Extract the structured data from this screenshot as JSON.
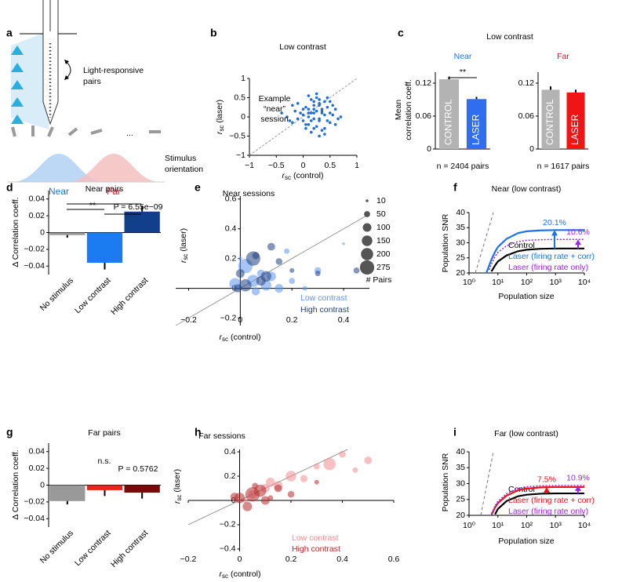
{
  "diagram": {
    "panel": "a",
    "texts": [
      "Light-responsive",
      "pairs",
      "...",
      "Near",
      "Far",
      "Stimulus",
      "orientation"
    ]
  },
  "chart_data": [
    {
      "type": "scatter",
      "panel": "b",
      "title": "Low contrast",
      "xlabel": {
        "text": "r",
        "sub": "sc",
        "rest": " (control)"
      },
      "ylabel": {
        "text": "r",
        "sub": "sc",
        "rest": " (laser)"
      },
      "annotation": [
        "Example",
        "“near”",
        "session"
      ],
      "xlim": [
        -1,
        1
      ],
      "ylim": [
        -1,
        1
      ],
      "xticks": [
        {
          "value": -1,
          "label": "−1"
        },
        {
          "value": -0.5,
          "label": "−0.5"
        },
        0,
        0.5,
        1
      ],
      "yticks": [
        {
          "value": -1,
          "label": "−1"
        },
        {
          "value": -0.5,
          "label": "−0.5"
        },
        0,
        0.5,
        1
      ],
      "series": [
        {
          "color": "#1f6fd6",
          "x": [
            0.1,
            0.3,
            -0.2,
            0.5,
            0.2,
            0.0,
            0.4,
            0.6,
            -0.1,
            0.25,
            0.35,
            0.15,
            -0.3,
            0.45,
            0.05,
            0.55,
            0.2,
            0.1,
            0.3,
            -0.05,
            0.4,
            0.7,
            0.25,
            0.0,
            0.15,
            0.5,
            0.35,
            -0.15,
            0.3,
            0.2,
            0.1,
            0.45,
            0.6,
            -0.25,
            0.05,
            0.25,
            0.4,
            0.15,
            0.3,
            0.2,
            -0.4,
            0.35,
            0.5,
            0.1,
            0.0,
            0.25,
            0.65,
            0.2,
            0.4,
            -0.1,
            0.3,
            0.15,
            0.55,
            0.05,
            0.2,
            0.35,
            -0.2,
            0.45,
            0.1,
            0.3
          ],
          "values": [
            0.2,
            -0.1,
            0.3,
            0.1,
            -0.3,
            0.05,
            0.4,
            -0.2,
            -0.05,
            0.5,
            0.15,
            -0.4,
            0.0,
            -0.1,
            0.25,
            0.3,
            0.1,
            -0.2,
            0.35,
            0.1,
            -0.3,
            0.0,
            0.6,
            -0.1,
            0.45,
            -0.15,
            0.2,
            0.15,
            -0.5,
            0.3,
            0.0,
            0.25,
            0.2,
            -0.1,
            -0.3,
            -0.25,
            0.05,
            0.1,
            0.45,
            -0.05,
            0.1,
            -0.35,
            0.4,
            0.55,
            0.2,
            0.15,
            -0.05,
            0.2,
            -0.45,
            0.35,
            0.3,
            -0.1,
            0.05,
            -0.2,
            0.4,
            0.1,
            -0.15,
            0.5,
            0.1,
            -0.05
          ]
        }
      ]
    },
    {
      "type": "bar",
      "panel": "c",
      "suptitle": "Low contrast",
      "title": "Near",
      "title_color": "#1f73e0",
      "ylabel": [
        "Mean",
        "correlation coeff."
      ],
      "categories": [
        "CONTROL",
        "LASER"
      ],
      "values": [
        0.127,
        0.091
      ],
      "errors": [
        0.005,
        0.004
      ],
      "colors": [
        "#b3b3b3",
        "#2f6fef"
      ],
      "category_labels": "inside",
      "ylim": [
        0,
        0.14
      ],
      "yticks": [
        0,
        0.06,
        0.12
      ],
      "annotations": [
        "**"
      ],
      "note": "n = 2404 pairs"
    },
    {
      "type": "bar",
      "title": "Far",
      "title_color": "#e8141c",
      "categories": [
        "CONTROL",
        "LASER"
      ],
      "values": [
        0.108,
        0.103
      ],
      "errors": [
        0.006,
        0.005
      ],
      "colors": [
        "#b3b3b3",
        "#f01414"
      ],
      "category_labels": "inside",
      "ylim": [
        0,
        0.14
      ],
      "yticks": [
        0,
        0.06,
        0.12
      ],
      "note": "n = 1617 pairs"
    },
    {
      "type": "bar",
      "panel": "d",
      "title": "Near pairs",
      "ylabel": "Δ Correlation coeff.",
      "categories": [
        "No stimulus",
        "Low contrast",
        "High contrast"
      ],
      "values": [
        -0.003,
        -0.036,
        0.025
      ],
      "errors": [
        0.003,
        0.008,
        0.007
      ],
      "colors": [
        "#999999",
        "#1a7cf0",
        "#123f8c"
      ],
      "category_labels": "rotated",
      "ylim": [
        -0.05,
        0.05
      ],
      "yticks": [
        {
          "value": -0.04,
          "label": "−0.04"
        },
        {
          "value": -0.02,
          "label": "−0.02"
        },
        0,
        0.02,
        0.04
      ],
      "annotations": [
        "**",
        "P = 6.55e−09"
      ]
    },
    {
      "type": "scatter",
      "panel": "e",
      "title": "Near sessions",
      "axes_at_zero": true,
      "xlabel": {
        "text": "r",
        "sub": "sc",
        "rest": " (control)"
      },
      "ylabel": {
        "text": "r",
        "sub": "sc",
        "rest": " (laser)"
      },
      "xlim": [
        -0.25,
        0.5
      ],
      "ylim": [
        -0.25,
        0.62
      ],
      "xticks": [
        {
          "value": -0.2,
          "label": "−0.2"
        },
        0,
        0.2,
        0.4
      ],
      "yticks": [
        {
          "value": -0.2,
          "label": "−0.2"
        },
        0,
        0.2,
        0.4,
        0.6
      ],
      "series": [
        {
          "name": "Low contrast",
          "color": "#5d95ee",
          "x": [
            0.05,
            0.1,
            0.15,
            0.02,
            0.2,
            0.12,
            0.08,
            -0.02,
            0.25,
            0.3,
            0.18,
            0.06,
            0.0,
            0.4
          ],
          "values": [
            0.05,
            0.02,
            0.0,
            0.15,
            0.05,
            0.08,
            0.1,
            0.03,
            0.0,
            0.12,
            0.25,
            -0.02,
            0.2,
            0.3
          ],
          "sizes": [
            200,
            150,
            100,
            275,
            50,
            120,
            80,
            180,
            30,
            60,
            40,
            90,
            20,
            10
          ]
        },
        {
          "name": "High contrast",
          "color": "#1f3f80",
          "x": [
            0.05,
            0.1,
            0.02,
            0.15,
            0.0,
            0.08,
            0.2,
            0.3,
            0.45,
            0.12,
            -0.01,
            0.06
          ],
          "values": [
            0.2,
            0.08,
            0.02,
            0.18,
            0.1,
            0.05,
            0.12,
            0.1,
            0.12,
            0.28,
            0.0,
            0.22
          ],
          "sizes": [
            275,
            150,
            200,
            60,
            100,
            120,
            30,
            40,
            50,
            80,
            90,
            70
          ]
        }
      ],
      "size_legend": [
        10,
        50,
        100,
        150,
        200,
        275
      ],
      "size_legend_title": "# Pairs"
    },
    {
      "type": "line",
      "panel": "f",
      "title": "Near (low contrast)",
      "xlabel": "Population size",
      "ylabel": "Population SNR",
      "xlog": true,
      "xlim": [
        1,
        10000
      ],
      "xticks": [
        {
          "value": 1,
          "label": "10⁰"
        },
        {
          "value": 10,
          "label": "10¹"
        },
        {
          "value": 100,
          "label": "10²"
        },
        {
          "value": 1000,
          "label": "10³"
        },
        {
          "value": 10000,
          "label": "10⁴"
        }
      ],
      "ylim": [
        20,
        40
      ],
      "yticks": [
        20,
        25,
        30,
        35,
        40
      ],
      "x": [
        4,
        5,
        6,
        8,
        10,
        20,
        50,
        100,
        300,
        1000,
        10000
      ],
      "series": [
        {
          "name": "Control",
          "color": "#000000",
          "values": [
            null,
            null,
            20.5,
            22.5,
            23.8,
            25.8,
            27.2,
            27.7,
            28.0,
            28.1,
            28.1
          ]
        },
        {
          "name": "Laser (firing rate + corr)",
          "color": "#1a73e8",
          "values": [
            20,
            22.5,
            24.5,
            27,
            28.6,
            31.3,
            33.2,
            33.8,
            34.1,
            34.2,
            34.2
          ]
        },
        {
          "name": "Laser (firing rate only)",
          "color": "#a020f0",
          "style": "dotted",
          "values": [
            null,
            21,
            23,
            25.5,
            26.8,
            29,
            30.4,
            30.8,
            31.0,
            31.1,
            31.1
          ]
        }
      ],
      "annotations": [
        "20.1%",
        "10.6%"
      ]
    },
    {
      "type": "bar",
      "panel": "g",
      "title": "Far pairs",
      "ylabel": "Δ Correlation coeff.",
      "categories": [
        "No stimulus",
        "Low contrast",
        "High contrast"
      ],
      "values": [
        -0.019,
        -0.006,
        -0.009
      ],
      "errors": [
        0.004,
        0.007,
        0.007
      ],
      "colors": [
        "#999999",
        "#e8241c",
        "#7a0a0a"
      ],
      "category_labels": "rotated",
      "ylim": [
        -0.05,
        0.05
      ],
      "yticks": [
        {
          "value": -0.04,
          "label": "−0.04"
        },
        {
          "value": -0.02,
          "label": "−0.02"
        },
        0,
        0.02,
        0.04
      ],
      "annotations": [
        "n.s.",
        "P = 0.5762"
      ]
    },
    {
      "type": "scatter",
      "panel": "h",
      "title": "Far sessions",
      "axes_at_zero": true,
      "xlabel": {
        "text": "r",
        "sub": "sc",
        "rest": " (control)"
      },
      "ylabel": {
        "text": "r",
        "sub": "sc",
        "rest": " (laser)"
      },
      "xlim": [
        -0.2,
        0.6
      ],
      "ylim": [
        -0.42,
        0.42
      ],
      "xticks": [
        {
          "value": -0.2,
          "label": "−0.2"
        },
        0,
        0.2,
        0.4,
        0.6
      ],
      "yticks": [
        {
          "value": -0.4,
          "label": "−0.4"
        },
        {
          "value": -0.2,
          "label": "−0.2"
        },
        0,
        0.2,
        0.4
      ],
      "series": [
        {
          "name": "Low contrast",
          "color": "#f08c92",
          "x": [
            0.1,
            0.2,
            0.35,
            0.5,
            0.4,
            0.15,
            0.05,
            0.25,
            0.3,
            0.45,
            0.02,
            0.12
          ],
          "values": [
            0.1,
            0.2,
            0.3,
            0.33,
            0.38,
            0.12,
            0.05,
            0.18,
            0.28,
            0.25,
            0.0,
            0.15
          ],
          "sizes": [
            100,
            150,
            200,
            80,
            60,
            120,
            90,
            70,
            50,
            40,
            30,
            110
          ]
        },
        {
          "name": "High contrast",
          "color": "#b52a2a",
          "x": [
            0.05,
            0.08,
            0.0,
            0.1,
            0.03,
            0.15,
            0.2,
            -0.02,
            0.06,
            0.12,
            0.3
          ],
          "values": [
            0.05,
            0.08,
            0.02,
            0.0,
            -0.05,
            0.1,
            0.05,
            0.03,
            0.12,
            0.02,
            0.15
          ],
          "sizes": [
            275,
            200,
            150,
            100,
            120,
            80,
            60,
            90,
            50,
            40,
            30
          ]
        }
      ]
    },
    {
      "type": "line",
      "panel": "i",
      "title": "Far (low contrast)",
      "xlabel": "Population size",
      "ylabel": "Population SNR",
      "xlog": true,
      "xlim": [
        1,
        10000
      ],
      "xticks": [
        {
          "value": 1,
          "label": "10⁰"
        },
        {
          "value": 10,
          "label": "10¹"
        },
        {
          "value": 100,
          "label": "10²"
        },
        {
          "value": 1000,
          "label": "10³"
        },
        {
          "value": 10000,
          "label": "10⁴"
        }
      ],
      "ylim": [
        20,
        40
      ],
      "yticks": [
        20,
        25,
        30,
        35,
        40
      ],
      "x": [
        4,
        5,
        6,
        8,
        10,
        20,
        50,
        100,
        300,
        1000,
        10000
      ],
      "series": [
        {
          "name": "Control",
          "color": "#000000",
          "values": [
            null,
            null,
            null,
            20.3,
            22,
            24.5,
            26,
            26.5,
            26.8,
            26.9,
            26.9
          ]
        },
        {
          "name": "Laser (firing rate + corr)",
          "color": "#e8141c",
          "values": [
            null,
            null,
            20.2,
            22.5,
            23.8,
            26.2,
            27.9,
            28.4,
            28.8,
            28.9,
            28.9
          ]
        },
        {
          "name": "Laser (firing rate only)",
          "color": "#a020f0",
          "style": "dotted",
          "values": [
            null,
            null,
            20.5,
            23,
            24.4,
            26.8,
            28.5,
            29,
            29.3,
            29.4,
            29.4
          ]
        }
      ],
      "annotations": [
        "7.5%",
        "10.9%"
      ]
    }
  ]
}
